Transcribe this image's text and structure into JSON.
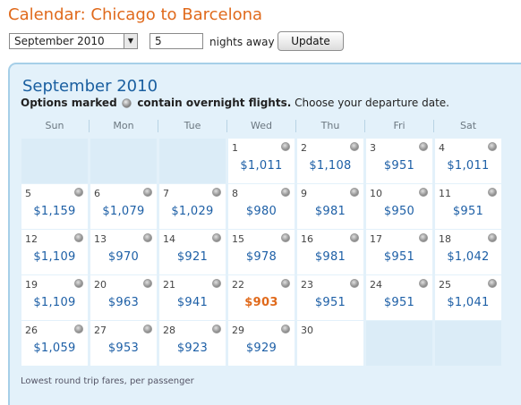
{
  "title": "Calendar: Chicago to Barcelona",
  "controls": {
    "month_value": "September 2010",
    "nights_value": "5",
    "nights_label": "nights away",
    "update_label": "Update"
  },
  "calendar": {
    "month_label": "September 2010",
    "note": {
      "prefix": "Options marked",
      "suffix_bold": "contain overnight flights.",
      "suffix": "Choose your departure date."
    },
    "weekdays": [
      "Sun",
      "Mon",
      "Tue",
      "Wed",
      "Thu",
      "Fri",
      "Sat"
    ],
    "weeks": [
      [
        null,
        null,
        null,
        {
          "day": "1",
          "fare": "$1,011",
          "overnight": true
        },
        {
          "day": "2",
          "fare": "$1,108",
          "overnight": true
        },
        {
          "day": "3",
          "fare": "$951",
          "overnight": true
        },
        {
          "day": "4",
          "fare": "$1,011",
          "overnight": true
        }
      ],
      [
        {
          "day": "5",
          "fare": "$1,159",
          "overnight": true
        },
        {
          "day": "6",
          "fare": "$1,079",
          "overnight": true
        },
        {
          "day": "7",
          "fare": "$1,029",
          "overnight": true
        },
        {
          "day": "8",
          "fare": "$980",
          "overnight": true
        },
        {
          "day": "9",
          "fare": "$981",
          "overnight": true
        },
        {
          "day": "10",
          "fare": "$950",
          "overnight": true
        },
        {
          "day": "11",
          "fare": "$951",
          "overnight": true
        }
      ],
      [
        {
          "day": "12",
          "fare": "$1,109",
          "overnight": true
        },
        {
          "day": "13",
          "fare": "$970",
          "overnight": true
        },
        {
          "day": "14",
          "fare": "$921",
          "overnight": true
        },
        {
          "day": "15",
          "fare": "$978",
          "overnight": true
        },
        {
          "day": "16",
          "fare": "$981",
          "overnight": true
        },
        {
          "day": "17",
          "fare": "$951",
          "overnight": true
        },
        {
          "day": "18",
          "fare": "$1,042",
          "overnight": true
        }
      ],
      [
        {
          "day": "19",
          "fare": "$1,109",
          "overnight": true
        },
        {
          "day": "20",
          "fare": "$963",
          "overnight": true
        },
        {
          "day": "21",
          "fare": "$941",
          "overnight": true
        },
        {
          "day": "22",
          "fare": "$903",
          "overnight": true,
          "lowest": true
        },
        {
          "day": "23",
          "fare": "$951",
          "overnight": true
        },
        {
          "day": "24",
          "fare": "$951",
          "overnight": true
        },
        {
          "day": "25",
          "fare": "$1,041",
          "overnight": true
        }
      ],
      [
        {
          "day": "26",
          "fare": "$1,059",
          "overnight": true
        },
        {
          "day": "27",
          "fare": "$953",
          "overnight": true
        },
        {
          "day": "28",
          "fare": "$923",
          "overnight": true
        },
        {
          "day": "29",
          "fare": "$929",
          "overnight": true
        },
        {
          "day": "30",
          "fare": "",
          "overnight": false
        },
        null,
        null
      ]
    ],
    "footnote": "Lowest round trip fares, per passenger"
  },
  "colors": {
    "title": "#e06a1c",
    "month": "#1a5fa0",
    "fare": "#1d5fa6",
    "lowest_fare": "#e06a1c",
    "panel_bg": "#e3f1fa",
    "panel_border": "#a6cfe8"
  }
}
